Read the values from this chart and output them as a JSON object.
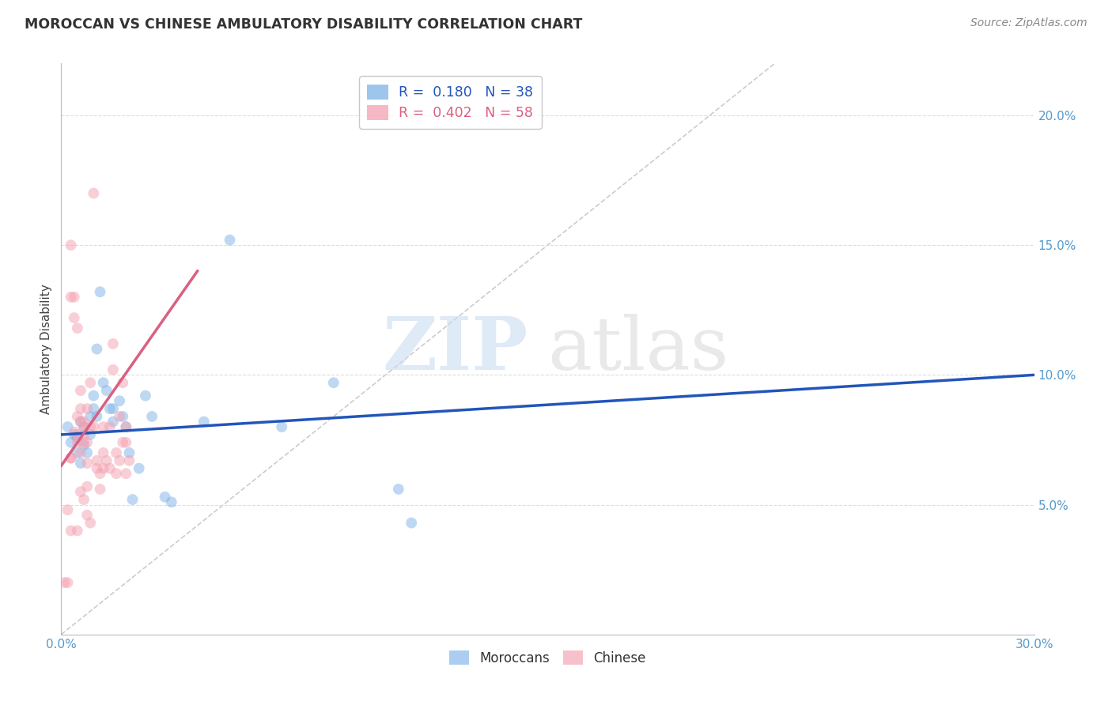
{
  "title": "MOROCCAN VS CHINESE AMBULATORY DISABILITY CORRELATION CHART",
  "source": "Source: ZipAtlas.com",
  "ylabel": "Ambulatory Disability",
  "xlim": [
    0.0,
    0.3
  ],
  "ylim": [
    0.0,
    0.22
  ],
  "xticks": [
    0.0,
    0.05,
    0.1,
    0.15,
    0.2,
    0.25,
    0.3
  ],
  "yticks": [
    0.05,
    0.1,
    0.15,
    0.2
  ],
  "ytick_labels": [
    "5.0%",
    "10.0%",
    "15.0%",
    "20.0%"
  ],
  "xtick_labels": [
    "0.0%",
    "",
    "",
    "",
    "",
    "",
    "30.0%"
  ],
  "background_color": "#ffffff",
  "grid_color": "#dddddd",
  "watermark_zip": "ZIP",
  "watermark_atlas": "atlas",
  "moroccan_color": "#7eb3e8",
  "chinese_color": "#f4a0b0",
  "moroccan_line_color": "#2255bb",
  "chinese_line_color": "#d96080",
  "moroccan_R": 0.18,
  "moroccan_N": 38,
  "chinese_R": 0.402,
  "chinese_N": 58,
  "moroccan_scatter": [
    [
      0.002,
      0.08
    ],
    [
      0.003,
      0.074
    ],
    [
      0.004,
      0.077
    ],
    [
      0.005,
      0.07
    ],
    [
      0.005,
      0.076
    ],
    [
      0.006,
      0.082
    ],
    [
      0.006,
      0.066
    ],
    [
      0.007,
      0.08
    ],
    [
      0.007,
      0.073
    ],
    [
      0.008,
      0.07
    ],
    [
      0.009,
      0.084
    ],
    [
      0.009,
      0.077
    ],
    [
      0.01,
      0.092
    ],
    [
      0.01,
      0.087
    ],
    [
      0.011,
      0.11
    ],
    [
      0.011,
      0.084
    ],
    [
      0.012,
      0.132
    ],
    [
      0.013,
      0.097
    ],
    [
      0.014,
      0.094
    ],
    [
      0.015,
      0.087
    ],
    [
      0.016,
      0.087
    ],
    [
      0.016,
      0.082
    ],
    [
      0.018,
      0.09
    ],
    [
      0.019,
      0.084
    ],
    [
      0.02,
      0.08
    ],
    [
      0.021,
      0.07
    ],
    [
      0.022,
      0.052
    ],
    [
      0.024,
      0.064
    ],
    [
      0.026,
      0.092
    ],
    [
      0.028,
      0.084
    ],
    [
      0.032,
      0.053
    ],
    [
      0.034,
      0.051
    ],
    [
      0.044,
      0.082
    ],
    [
      0.052,
      0.152
    ],
    [
      0.068,
      0.08
    ],
    [
      0.084,
      0.097
    ],
    [
      0.104,
      0.056
    ],
    [
      0.108,
      0.043
    ]
  ],
  "chinese_scatter": [
    [
      0.001,
      0.02
    ],
    [
      0.002,
      0.02
    ],
    [
      0.002,
      0.048
    ],
    [
      0.003,
      0.068
    ],
    [
      0.003,
      0.15
    ],
    [
      0.003,
      0.068
    ],
    [
      0.003,
      0.13
    ],
    [
      0.004,
      0.078
    ],
    [
      0.004,
      0.122
    ],
    [
      0.004,
      0.13
    ],
    [
      0.005,
      0.118
    ],
    [
      0.005,
      0.084
    ],
    [
      0.005,
      0.077
    ],
    [
      0.005,
      0.074
    ],
    [
      0.006,
      0.082
    ],
    [
      0.006,
      0.087
    ],
    [
      0.006,
      0.07
    ],
    [
      0.006,
      0.094
    ],
    [
      0.007,
      0.074
    ],
    [
      0.007,
      0.082
    ],
    [
      0.007,
      0.077
    ],
    [
      0.007,
      0.08
    ],
    [
      0.008,
      0.087
    ],
    [
      0.008,
      0.074
    ],
    [
      0.008,
      0.066
    ],
    [
      0.009,
      0.097
    ],
    [
      0.009,
      0.08
    ],
    [
      0.01,
      0.17
    ],
    [
      0.01,
      0.08
    ],
    [
      0.011,
      0.067
    ],
    [
      0.011,
      0.064
    ],
    [
      0.012,
      0.062
    ],
    [
      0.012,
      0.056
    ],
    [
      0.013,
      0.07
    ],
    [
      0.013,
      0.08
    ],
    [
      0.013,
      0.064
    ],
    [
      0.014,
      0.067
    ],
    [
      0.015,
      0.08
    ],
    [
      0.015,
      0.064
    ],
    [
      0.016,
      0.112
    ],
    [
      0.016,
      0.102
    ],
    [
      0.017,
      0.062
    ],
    [
      0.017,
      0.07
    ],
    [
      0.018,
      0.067
    ],
    [
      0.018,
      0.084
    ],
    [
      0.019,
      0.074
    ],
    [
      0.019,
      0.097
    ],
    [
      0.02,
      0.08
    ],
    [
      0.02,
      0.062
    ],
    [
      0.02,
      0.074
    ],
    [
      0.021,
      0.067
    ],
    [
      0.003,
      0.04
    ],
    [
      0.005,
      0.04
    ],
    [
      0.006,
      0.055
    ],
    [
      0.007,
      0.052
    ],
    [
      0.008,
      0.057
    ],
    [
      0.008,
      0.046
    ],
    [
      0.009,
      0.043
    ]
  ],
  "moroccan_trend_x": [
    0.0,
    0.3
  ],
  "moroccan_trend_y": [
    0.077,
    0.1
  ],
  "chinese_trend_x": [
    0.0,
    0.042
  ],
  "chinese_trend_y": [
    0.065,
    0.14
  ]
}
